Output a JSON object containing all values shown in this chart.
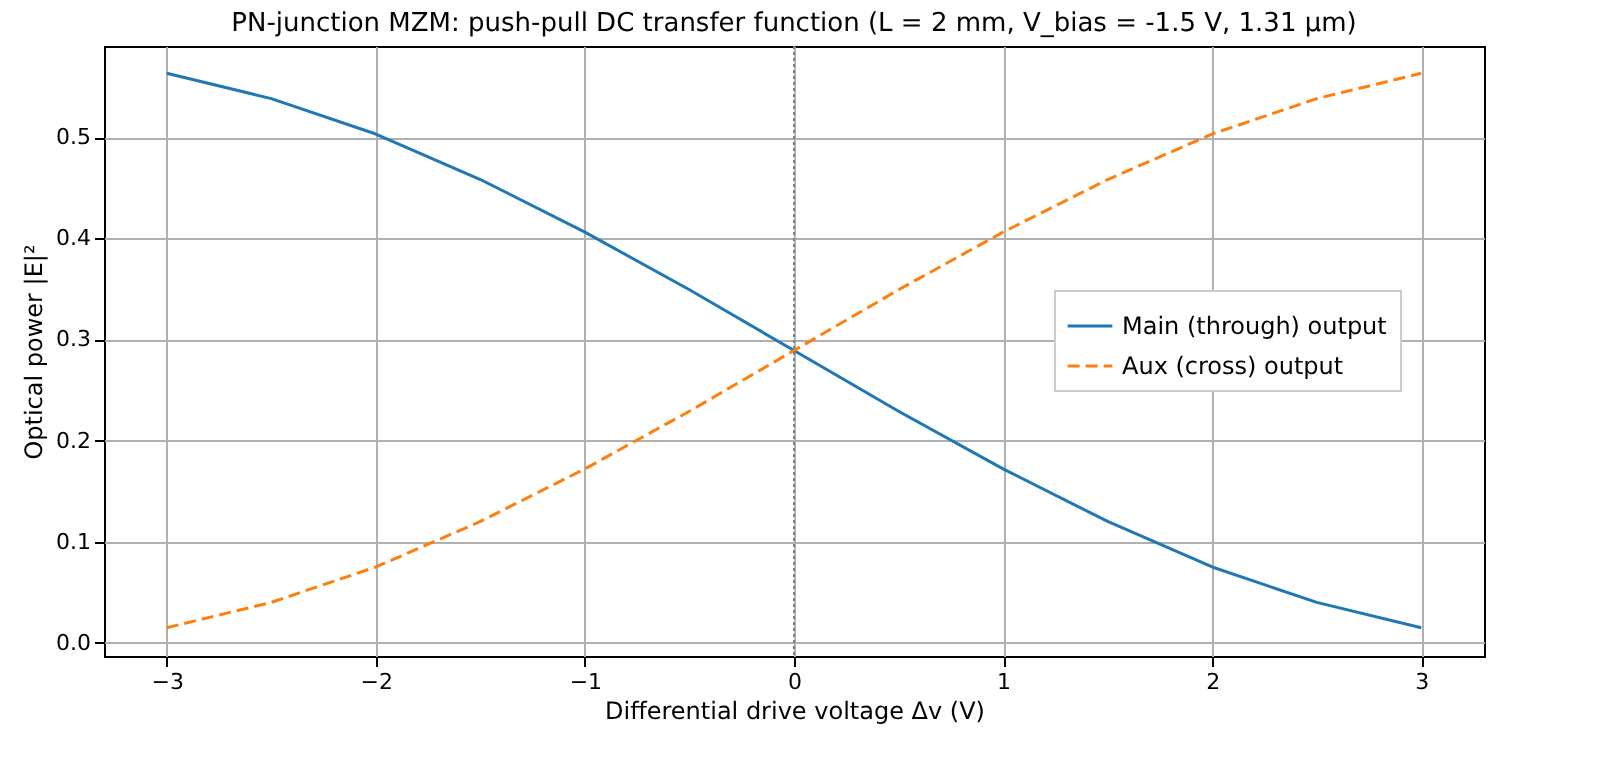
{
  "chart_data": {
    "type": "line",
    "title": "PN-junction MZM: push-pull DC transfer function  (L = 2 mm,  V_bias = -1.5 V,  1.31 μm)",
    "xlabel": "Differential drive voltage Δv (V)",
    "ylabel": "Optical power  |E|²",
    "x": [
      -3,
      -2.5,
      -2,
      -1.5,
      -1,
      -0.5,
      0,
      0.5,
      1,
      1.5,
      2,
      2.5,
      3
    ],
    "series": [
      {
        "name": "Main (through) output",
        "color": "#1f77b4",
        "line_style": "solid",
        "values": [
          0.563,
          0.538,
          0.503,
          0.458,
          0.406,
          0.349,
          0.289,
          0.229,
          0.172,
          0.12,
          0.075,
          0.04,
          0.015
        ]
      },
      {
        "name": "Aux (cross) output",
        "color": "#ff7f0e",
        "line_style": "dashed",
        "values": [
          0.015,
          0.04,
          0.075,
          0.12,
          0.172,
          0.229,
          0.289,
          0.349,
          0.406,
          0.458,
          0.503,
          0.538,
          0.563
        ]
      }
    ],
    "xlim": [
      -3.3,
      3.3
    ],
    "xticks": [
      {
        "value": -3,
        "label": "−3"
      },
      {
        "value": -2,
        "label": "−2"
      },
      {
        "value": -1,
        "label": "−1"
      },
      0,
      1,
      2,
      3
    ],
    "ylim": [
      -0.013,
      0.59
    ],
    "yticks": [
      {
        "value": 0,
        "label": "0.0"
      },
      0.1,
      0.2,
      0.3,
      0.4,
      0.5
    ],
    "ref_lines": [
      {
        "axis": "x",
        "value": 0,
        "color": "#808080",
        "line_style": "dotted"
      }
    ],
    "grid": true,
    "legend": "right"
  }
}
